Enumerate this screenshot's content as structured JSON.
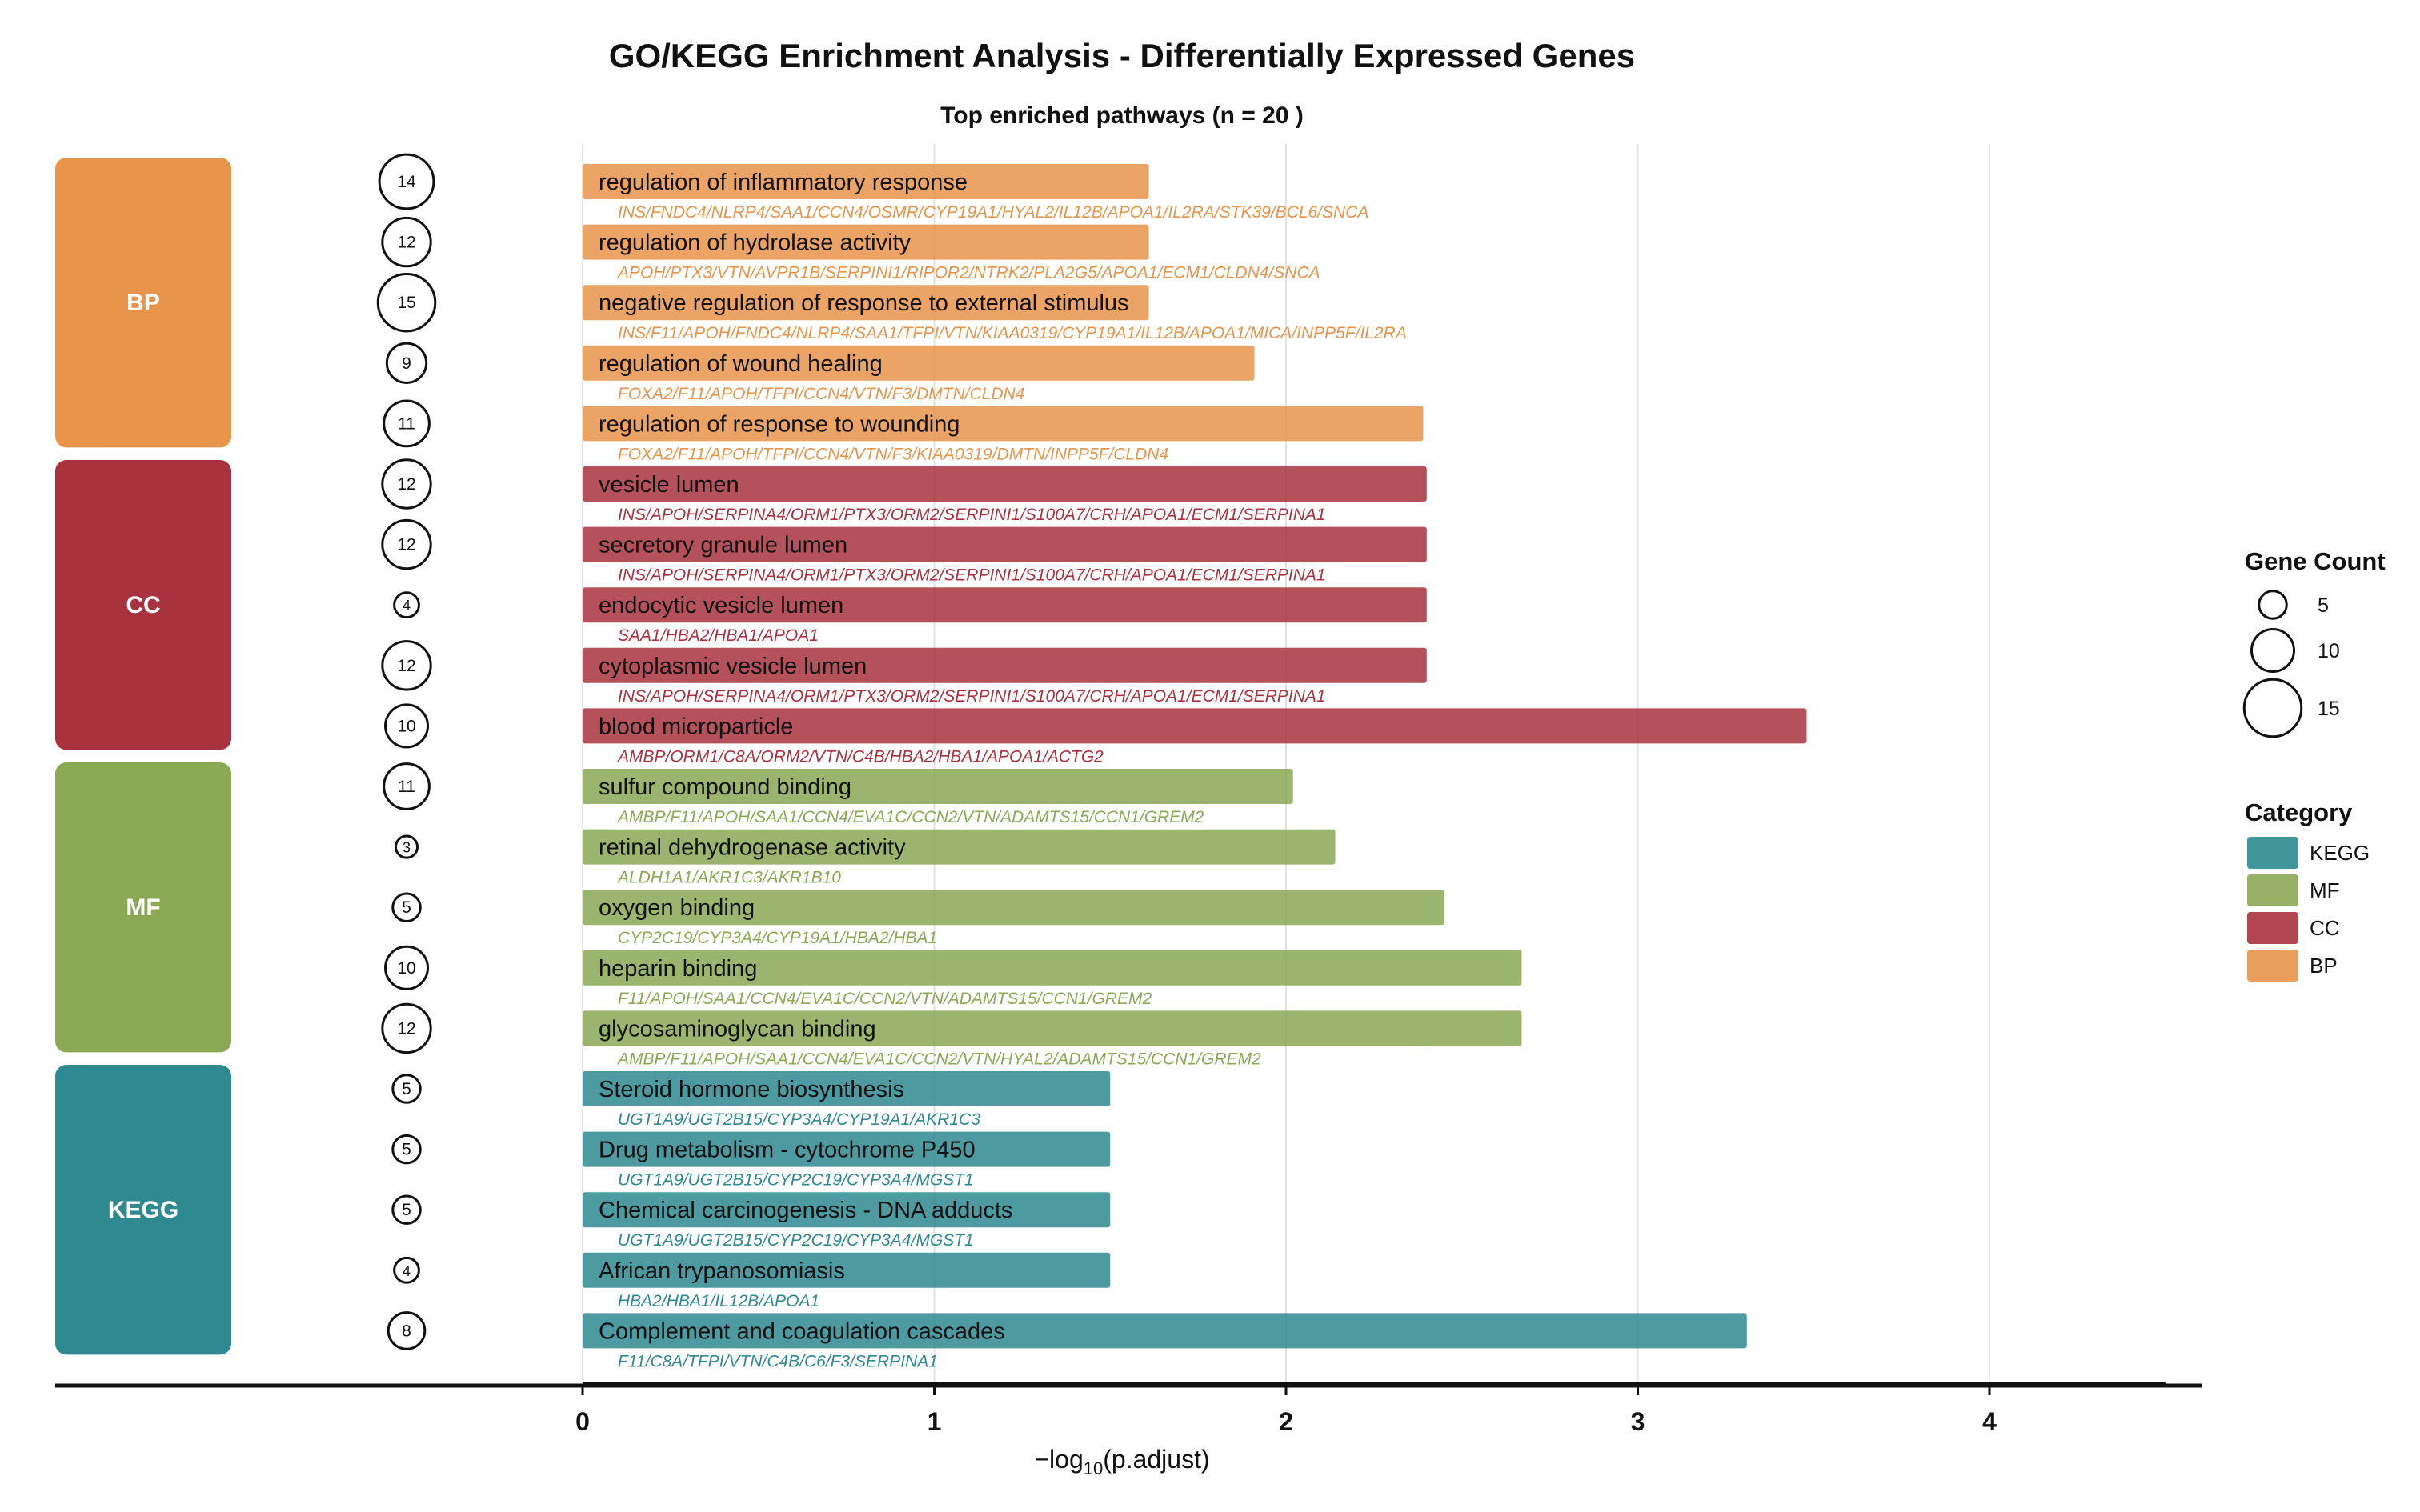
{
  "chart_data": {
    "type": "bar",
    "title": "GO/KEGG Enrichment Analysis - Differentially Expressed Genes",
    "subtitle": "Top enriched pathways (n = 20 )",
    "xlabel_prefix": "−log",
    "xlabel_sub": "10",
    "xlabel_suffix": "(p.adjust)",
    "xlim": [
      0,
      4.5
    ],
    "xticks": [
      0,
      1,
      2,
      3,
      4
    ],
    "grid": true,
    "colors": {
      "BP": "#E8944A",
      "CC": "#A8323E",
      "MF": "#8BA855",
      "KEGG": "#2E8A90"
    },
    "categories": [
      {
        "name": "BP",
        "label": "BP"
      },
      {
        "name": "CC",
        "label": "CC"
      },
      {
        "name": "MF",
        "label": "MF"
      },
      {
        "name": "KEGG",
        "label": "KEGG"
      }
    ],
    "rows": [
      {
        "term": "regulation of inflammatory response",
        "genes": "INS/FNDC4/NLRP4/SAA1/CCN4/OSMR/CYP19A1/HYAL2/IL12B/APOA1/IL2RA/STK39/BCL6/SNCA",
        "count": 14,
        "value": 1.61,
        "category": "BP"
      },
      {
        "term": "regulation of hydrolase activity",
        "genes": "APOH/PTX3/VTN/AVPR1B/SERPINI1/RIPOR2/NTRK2/PLA2G5/APOA1/ECM1/CLDN4/SNCA",
        "count": 12,
        "value": 1.61,
        "category": "BP"
      },
      {
        "term": "negative regulation of response to external stimulus",
        "genes": "INS/F11/APOH/FNDC4/NLRP4/SAA1/TFPI/VTN/KIAA0319/CYP19A1/IL12B/APOA1/MICA/INPP5F/IL2RA",
        "count": 15,
        "value": 1.61,
        "category": "BP"
      },
      {
        "term": "regulation of wound healing",
        "genes": "FOXA2/F11/APOH/TFPI/CCN4/VTN/F3/DMTN/CLDN4",
        "count": 9,
        "value": 1.91,
        "category": "BP"
      },
      {
        "term": "regulation of response to wounding",
        "genes": "FOXA2/F11/APOH/TFPI/CCN4/VTN/F3/KIAA0319/DMTN/INPP5F/CLDN4",
        "count": 11,
        "value": 2.39,
        "category": "BP"
      },
      {
        "term": "vesicle lumen",
        "genes": "INS/APOH/SERPINA4/ORM1/PTX3/ORM2/SERPINI1/S100A7/CRH/APOA1/ECM1/SERPINA1",
        "count": 12,
        "value": 2.4,
        "category": "CC"
      },
      {
        "term": "secretory granule lumen",
        "genes": "INS/APOH/SERPINA4/ORM1/PTX3/ORM2/SERPINI1/S100A7/CRH/APOA1/ECM1/SERPINA1",
        "count": 12,
        "value": 2.4,
        "category": "CC"
      },
      {
        "term": "endocytic vesicle lumen",
        "genes": "SAA1/HBA2/HBA1/APOA1",
        "count": 4,
        "value": 2.4,
        "category": "CC"
      },
      {
        "term": "cytoplasmic vesicle lumen",
        "genes": "INS/APOH/SERPINA4/ORM1/PTX3/ORM2/SERPINI1/S100A7/CRH/APOA1/ECM1/SERPINA1",
        "count": 12,
        "value": 2.4,
        "category": "CC"
      },
      {
        "term": "blood microparticle",
        "genes": "AMBP/ORM1/C8A/ORM2/VTN/C4B/HBA2/HBA1/APOA1/ACTG2",
        "count": 10,
        "value": 3.48,
        "category": "CC"
      },
      {
        "term": "sulfur compound binding",
        "genes": "AMBP/F11/APOH/SAA1/CCN4/EVA1C/CCN2/VTN/ADAMTS15/CCN1/GREM2",
        "count": 11,
        "value": 2.02,
        "category": "MF"
      },
      {
        "term": "retinal dehydrogenase activity",
        "genes": "ALDH1A1/AKR1C3/AKR1B10",
        "count": 3,
        "value": 2.14,
        "category": "MF"
      },
      {
        "term": "oxygen binding",
        "genes": "CYP2C19/CYP3A4/CYP19A1/HBA2/HBA1",
        "count": 5,
        "value": 2.45,
        "category": "MF"
      },
      {
        "term": "heparin binding",
        "genes": "F11/APOH/SAA1/CCN4/EVA1C/CCN2/VTN/ADAMTS15/CCN1/GREM2",
        "count": 10,
        "value": 2.67,
        "category": "MF"
      },
      {
        "term": "glycosaminoglycan binding",
        "genes": "AMBP/F11/APOH/SAA1/CCN4/EVA1C/CCN2/VTN/HYAL2/ADAMTS15/CCN1/GREM2",
        "count": 12,
        "value": 2.67,
        "category": "MF"
      },
      {
        "term": "Steroid hormone biosynthesis",
        "genes": "UGT1A9/UGT2B15/CYP3A4/CYP19A1/AKR1C3",
        "count": 5,
        "value": 1.5,
        "category": "KEGG"
      },
      {
        "term": "Drug metabolism - cytochrome P450",
        "genes": "UGT1A9/UGT2B15/CYP2C19/CYP3A4/MGST1",
        "count": 5,
        "value": 1.5,
        "category": "KEGG"
      },
      {
        "term": "Chemical carcinogenesis - DNA adducts",
        "genes": "UGT1A9/UGT2B15/CYP2C19/CYP3A4/MGST1",
        "count": 5,
        "value": 1.5,
        "category": "KEGG"
      },
      {
        "term": "African trypanosomiasis",
        "genes": "HBA2/HBA1/IL12B/APOA1",
        "count": 4,
        "value": 1.5,
        "category": "KEGG"
      },
      {
        "term": "Complement and coagulation cascades",
        "genes": "F11/C8A/TFPI/VTN/C4B/C6/F3/SERPINA1",
        "count": 8,
        "value": 3.31,
        "category": "KEGG"
      }
    ],
    "legend_size": {
      "title": "Gene Count",
      "position": "right",
      "items": [
        {
          "label": "5",
          "value": 5
        },
        {
          "label": "10",
          "value": 10
        },
        {
          "label": "15",
          "value": 15
        }
      ]
    },
    "legend_category": {
      "title": "Category",
      "position": "right",
      "items": [
        {
          "label": "KEGG",
          "key": "KEGG"
        },
        {
          "label": "MF",
          "key": "MF"
        },
        {
          "label": "CC",
          "key": "CC"
        },
        {
          "label": "BP",
          "key": "BP"
        }
      ]
    }
  }
}
